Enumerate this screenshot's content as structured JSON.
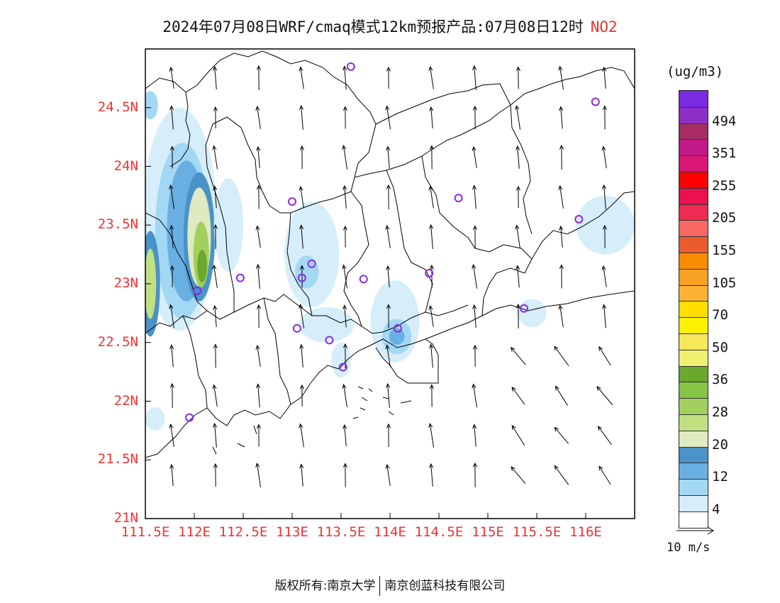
{
  "title": {
    "text": "2024年07月08日WRF/cmaq模式12km预报产品:07月08日12时",
    "pollutant": "NO2"
  },
  "map": {
    "lon_range": [
      111.5,
      116.5
    ],
    "lat_range": [
      21.0,
      25.0
    ],
    "x_ticks": [
      "111.5E",
      "112E",
      "112.5E",
      "113E",
      "113.5E",
      "114E",
      "114.5E",
      "115E",
      "115.5E",
      "116E"
    ],
    "y_ticks": [
      "24.5N",
      "24N",
      "23.5N",
      "23N",
      "22.5N",
      "22N",
      "21.5N",
      "21N"
    ],
    "tick_color": "#e83535",
    "stations": [
      {
        "lon": 113.6,
        "lat": 24.85
      },
      {
        "lon": 116.1,
        "lat": 24.55
      },
      {
        "lon": 113.0,
        "lat": 23.7
      },
      {
        "lon": 114.7,
        "lat": 23.73
      },
      {
        "lon": 115.93,
        "lat": 23.55
      },
      {
        "lon": 113.2,
        "lat": 23.17
      },
      {
        "lon": 112.47,
        "lat": 23.05
      },
      {
        "lon": 113.1,
        "lat": 23.05
      },
      {
        "lon": 113.73,
        "lat": 23.04
      },
      {
        "lon": 114.4,
        "lat": 23.09
      },
      {
        "lon": 112.03,
        "lat": 22.94
      },
      {
        "lon": 113.05,
        "lat": 22.62
      },
      {
        "lon": 114.08,
        "lat": 22.62
      },
      {
        "lon": 113.38,
        "lat": 22.52
      },
      {
        "lon": 113.52,
        "lat": 22.29
      },
      {
        "lon": 115.37,
        "lat": 22.79
      },
      {
        "lon": 111.95,
        "lat": 21.86
      }
    ],
    "station_color": "#8a2be2",
    "no2_patches": [
      {
        "lon": 111.85,
        "lat": 23.55,
        "rx": 0.38,
        "ry": 0.95,
        "level": 0
      },
      {
        "lon": 111.88,
        "lat": 23.45,
        "rx": 0.28,
        "ry": 0.75,
        "level": 1
      },
      {
        "lon": 111.92,
        "lat": 23.45,
        "rx": 0.2,
        "ry": 0.6,
        "level": 2
      },
      {
        "lon": 112.05,
        "lat": 23.4,
        "rx": 0.16,
        "ry": 0.55,
        "level": 3
      },
      {
        "lon": 112.05,
        "lat": 23.4,
        "rx": 0.12,
        "ry": 0.42,
        "level": 4
      },
      {
        "lon": 112.07,
        "lat": 23.25,
        "rx": 0.08,
        "ry": 0.28,
        "level": 6
      },
      {
        "lon": 112.08,
        "lat": 23.15,
        "rx": 0.05,
        "ry": 0.14,
        "level": 8
      },
      {
        "lon": 111.55,
        "lat": 23.0,
        "rx": 0.1,
        "ry": 0.45,
        "level": 3
      },
      {
        "lon": 111.55,
        "lat": 23.0,
        "rx": 0.06,
        "ry": 0.3,
        "level": 5
      },
      {
        "lon": 111.55,
        "lat": 24.52,
        "rx": 0.08,
        "ry": 0.12,
        "level": 1
      },
      {
        "lon": 113.2,
        "lat": 23.25,
        "rx": 0.28,
        "ry": 0.45,
        "level": 0
      },
      {
        "lon": 113.15,
        "lat": 23.1,
        "rx": 0.12,
        "ry": 0.14,
        "level": 1
      },
      {
        "lon": 113.35,
        "lat": 22.65,
        "rx": 0.28,
        "ry": 0.15,
        "level": 0
      },
      {
        "lon": 114.05,
        "lat": 22.68,
        "rx": 0.25,
        "ry": 0.35,
        "level": 0
      },
      {
        "lon": 114.07,
        "lat": 22.55,
        "rx": 0.15,
        "ry": 0.15,
        "level": 1
      },
      {
        "lon": 114.07,
        "lat": 22.55,
        "rx": 0.08,
        "ry": 0.07,
        "level": 2
      },
      {
        "lon": 113.5,
        "lat": 22.35,
        "rx": 0.1,
        "ry": 0.15,
        "level": 0
      },
      {
        "lon": 115.45,
        "lat": 22.75,
        "rx": 0.15,
        "ry": 0.12,
        "level": 0
      },
      {
        "lon": 116.2,
        "lat": 23.5,
        "rx": 0.3,
        "ry": 0.25,
        "level": 0
      },
      {
        "lon": 112.35,
        "lat": 23.5,
        "rx": 0.15,
        "ry": 0.4,
        "level": 0
      },
      {
        "lon": 111.6,
        "lat": 21.85,
        "rx": 0.1,
        "ry": 0.1,
        "level": 0
      }
    ]
  },
  "colorbar": {
    "unit": "(ug/m3)",
    "colors": [
      "#ffffff",
      "#d6eefa",
      "#a3d8f4",
      "#69b0e2",
      "#4a92c8",
      "#dfeac0",
      "#c0e082",
      "#a2d05e",
      "#88c448",
      "#6aa82e",
      "#eff070",
      "#f7e75a",
      "#fef200",
      "#ffdf00",
      "#fcb233",
      "#f8a122",
      "#f98c00",
      "#e85c2e",
      "#f76863",
      "#ee2c51",
      "#ec104e",
      "#ff0000",
      "#d91775",
      "#c11a86",
      "#a52d63",
      "#8e2fc6",
      "#7a2ae0"
    ],
    "labels": [
      "4",
      "12",
      "20",
      "28",
      "36",
      "50",
      "70",
      "105",
      "155",
      "205",
      "255",
      "351",
      "494"
    ]
  },
  "wind_reference": {
    "label": "10 m/s"
  },
  "footer": {
    "left": "版权所有:南京大学",
    "right": "南京创蓝科技有限公司"
  }
}
